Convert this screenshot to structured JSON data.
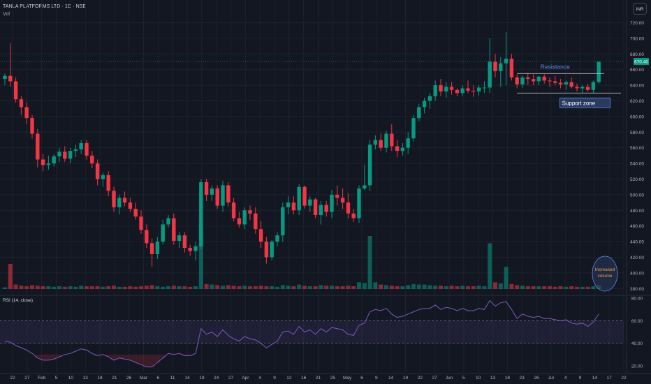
{
  "header": {
    "symbol_line": "TANLA PLATFORMS LTD · 1D · NSE",
    "volume_label": "Vol",
    "currency": "INR"
  },
  "rsi_label": "RSI (14, close)",
  "annotations": {
    "resistance": "Resistance",
    "support": "Support zone",
    "volume_note": [
      "Increased",
      "volume"
    ]
  },
  "colors": {
    "up": "#089981",
    "down": "#f23645",
    "background": "#131722",
    "rsi_line": "#7e57c2",
    "annotation": "#5b8def"
  },
  "chart_data": [
    {
      "type": "candlestick",
      "title": "TANLA PLATFORMS LTD · 1D · NSE",
      "currency": "INR",
      "price_axis_ticks": [
        380,
        400,
        420,
        440,
        460,
        480,
        500,
        520,
        540,
        560,
        580,
        600,
        620,
        640,
        660,
        680,
        700,
        720
      ],
      "ylim": [
        374,
        724
      ],
      "last_price_label": "670.40",
      "last_price": 670.4,
      "x_tick_labels": [
        "22",
        "27",
        "Feb",
        "5",
        "10",
        "13",
        "18",
        "21",
        "26",
        "Mar",
        "6",
        "11",
        "14",
        "19",
        "24",
        "27",
        "Apr",
        "4",
        "9",
        "12",
        "16",
        "21",
        "25",
        "May",
        "6",
        "9",
        "14",
        "19",
        "22",
        "27",
        "Jun",
        "5",
        "10",
        "13",
        "18",
        "23",
        "26",
        "Jul",
        "4",
        "9",
        "14",
        "17",
        "22"
      ],
      "candles": [
        [
          648,
          655,
          640,
          652
        ],
        [
          652,
          694,
          638,
          645
        ],
        [
          645,
          650,
          618,
          622
        ],
        [
          622,
          626,
          602,
          612
        ],
        [
          612,
          618,
          590,
          598
        ],
        [
          598,
          602,
          572,
          578
        ],
        [
          578,
          584,
          535,
          545
        ],
        [
          545,
          552,
          530,
          538
        ],
        [
          538,
          550,
          532,
          540
        ],
        [
          540,
          552,
          536,
          549
        ],
        [
          549,
          560,
          542,
          555
        ],
        [
          555,
          562,
          542,
          546
        ],
        [
          546,
          560,
          540,
          556
        ],
        [
          556,
          564,
          548,
          558
        ],
        [
          558,
          570,
          552,
          566
        ],
        [
          566,
          570,
          545,
          550
        ],
        [
          550,
          556,
          534,
          540
        ],
        [
          540,
          545,
          512,
          520
        ],
        [
          520,
          528,
          510,
          525
        ],
        [
          525,
          530,
          498,
          505
        ],
        [
          505,
          510,
          478,
          484
        ],
        [
          484,
          500,
          475,
          496
        ],
        [
          496,
          504,
          485,
          490
        ],
        [
          490,
          496,
          478,
          482
        ],
        [
          482,
          490,
          468,
          472
        ],
        [
          472,
          480,
          450,
          455
        ],
        [
          455,
          462,
          432,
          438
        ],
        [
          438,
          444,
          408,
          424
        ],
        [
          424,
          446,
          418,
          440
        ],
        [
          440,
          468,
          436,
          462
        ],
        [
          462,
          474,
          458,
          470
        ],
        [
          470,
          476,
          436,
          441
        ],
        [
          441,
          452,
          432,
          448
        ],
        [
          448,
          452,
          426,
          432
        ],
        [
          432,
          436,
          422,
          428
        ],
        [
          428,
          440,
          416,
          434
        ],
        [
          434,
          520,
          430,
          516
        ],
        [
          516,
          520,
          492,
          500
        ],
        [
          500,
          512,
          492,
          508
        ],
        [
          508,
          512,
          482,
          486
        ],
        [
          486,
          518,
          478,
          512
        ],
        [
          512,
          516,
          485,
          490
        ],
        [
          490,
          496,
          466,
          470
        ],
        [
          470,
          478,
          458,
          462
        ],
        [
          462,
          484,
          456,
          480
        ],
        [
          480,
          486,
          468,
          476
        ],
        [
          476,
          484,
          450,
          456
        ],
        [
          456,
          466,
          432,
          440
        ],
        [
          440,
          446,
          412,
          420
        ],
        [
          420,
          442,
          416,
          440
        ],
        [
          440,
          452,
          434,
          448
        ],
        [
          448,
          490,
          440,
          484
        ],
        [
          484,
          498,
          475,
          490
        ],
        [
          490,
          498,
          475,
          480
        ],
        [
          480,
          514,
          474,
          510
        ],
        [
          510,
          512,
          482,
          486
        ],
        [
          486,
          498,
          478,
          494
        ],
        [
          494,
          496,
          470,
          474
        ],
        [
          474,
          492,
          462,
          487
        ],
        [
          487,
          492,
          472,
          478
        ],
        [
          478,
          506,
          470,
          500
        ],
        [
          500,
          512,
          486,
          496
        ],
        [
          496,
          508,
          482,
          490
        ],
        [
          490,
          502,
          470,
          476
        ],
        [
          476,
          482,
          465,
          470
        ],
        [
          470,
          512,
          464,
          508
        ],
        [
          508,
          538,
          506,
          512
        ],
        [
          512,
          570,
          505,
          564
        ],
        [
          564,
          576,
          558,
          570
        ],
        [
          570,
          578,
          556,
          560
        ],
        [
          560,
          582,
          554,
          578
        ],
        [
          578,
          590,
          556,
          562
        ],
        [
          562,
          570,
          548,
          556
        ],
        [
          556,
          566,
          550,
          560
        ],
        [
          560,
          580,
          552,
          572
        ],
        [
          572,
          602,
          568,
          598
        ],
        [
          598,
          616,
          594,
          612
        ],
        [
          612,
          624,
          604,
          620
        ],
        [
          620,
          630,
          610,
          626
        ],
        [
          626,
          646,
          620,
          640
        ],
        [
          640,
          648,
          626,
          632
        ],
        [
          632,
          644,
          624,
          638
        ],
        [
          638,
          644,
          628,
          634
        ],
        [
          634,
          636,
          626,
          630
        ],
        [
          630,
          640,
          626,
          636
        ],
        [
          636,
          646,
          630,
          633
        ],
        [
          633,
          640,
          625,
          632
        ],
        [
          632,
          640,
          627,
          637
        ],
        [
          637,
          645,
          630,
          637
        ],
        [
          637,
          700,
          630,
          670
        ],
        [
          670,
          680,
          650,
          658
        ],
        [
          658,
          676,
          638,
          668
        ],
        [
          668,
          708,
          640,
          674
        ],
        [
          674,
          680,
          646,
          650
        ],
        [
          650,
          654,
          636,
          641
        ],
        [
          641,
          652,
          637,
          650
        ],
        [
          650,
          656,
          640,
          648
        ],
        [
          648,
          654,
          640,
          645
        ],
        [
          645,
          652,
          640,
          651
        ],
        [
          651,
          654,
          642,
          646
        ],
        [
          646,
          650,
          638,
          645
        ],
        [
          645,
          652,
          640,
          643
        ],
        [
          643,
          648,
          636,
          641
        ],
        [
          641,
          646,
          634,
          644
        ],
        [
          644,
          650,
          636,
          638
        ],
        [
          638,
          642,
          632,
          636
        ],
        [
          636,
          640,
          630,
          638
        ],
        [
          638,
          642,
          632,
          634
        ],
        [
          634,
          646,
          630,
          644
        ],
        [
          644,
          670,
          642,
          670
        ]
      ],
      "volumes": [
        3,
        45,
        8,
        6,
        5,
        7,
        6,
        5,
        5,
        4,
        5,
        4,
        5,
        4,
        6,
        5,
        5,
        5,
        4,
        5,
        6,
        4,
        4,
        5,
        4,
        5,
        6,
        7,
        5,
        4,
        5,
        6,
        5,
        5,
        4,
        5,
        118,
        9,
        8,
        7,
        6,
        7,
        6,
        5,
        6,
        5,
        5,
        6,
        5,
        5,
        4,
        7,
        6,
        5,
        8,
        6,
        5,
        5,
        7,
        6,
        6,
        5,
        5,
        6,
        5,
        12,
        11,
        95,
        12,
        8,
        7,
        6,
        5,
        5,
        7,
        9,
        8,
        8,
        7,
        6,
        6,
        5,
        6,
        5,
        6,
        5,
        5,
        6,
        5,
        82,
        12,
        10,
        40,
        9,
        7,
        6,
        5,
        5,
        5,
        5,
        5,
        4,
        5,
        4,
        5,
        4,
        4,
        4,
        5,
        7
      ]
    },
    {
      "type": "line",
      "title": "RSI (14, close)",
      "ylim": [
        15,
        82
      ],
      "y_ticks": [
        20,
        40,
        60,
        80
      ],
      "bands": [
        40,
        60
      ],
      "values": [
        42,
        41,
        38,
        36,
        34,
        31,
        27,
        25,
        25,
        26,
        28,
        30,
        31,
        33,
        35,
        34,
        31,
        29,
        30,
        28,
        25,
        27,
        26,
        25,
        23,
        21,
        19,
        19,
        23,
        27,
        31,
        30,
        31,
        29,
        29,
        31,
        53,
        48,
        50,
        46,
        52,
        47,
        44,
        42,
        46,
        44,
        43,
        40,
        36,
        39,
        42,
        50,
        51,
        48,
        55,
        50,
        52,
        48,
        53,
        50,
        54,
        53,
        52,
        48,
        47,
        56,
        58,
        68,
        70,
        69,
        71,
        66,
        63,
        64,
        66,
        68,
        70,
        71,
        71,
        74,
        70,
        72,
        71,
        69,
        71,
        69,
        69,
        71,
        70,
        78,
        73,
        76,
        77,
        70,
        62,
        66,
        64,
        63,
        64,
        62,
        62,
        61,
        60,
        61,
        58,
        57,
        58,
        55,
        59,
        66
      ]
    }
  ]
}
